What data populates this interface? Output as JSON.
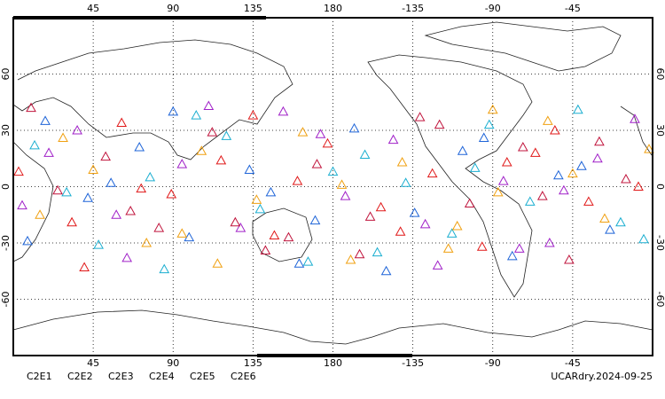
{
  "chart_data": {
    "type": "scatter",
    "footer": "UCARdry.2024-09-25",
    "xlim": [
      0,
      360
    ],
    "ylim": [
      -90,
      90
    ],
    "xticks": [
      45,
      90,
      135,
      180,
      {
        "value": 225,
        "label": "-135"
      },
      {
        "value": 270,
        "label": "-90"
      },
      {
        "value": 315,
        "label": "-45"
      }
    ],
    "yticks": [
      60,
      30,
      0,
      -30,
      -60
    ],
    "grid": true,
    "series": [
      {
        "name": "C2E1",
        "color": "#1aaed0",
        "x": [
          12,
          48,
          77,
          103,
          139,
          166,
          198,
          221,
          247,
          268,
          291,
          318,
          342,
          30,
          120,
          205,
          260,
          355,
          85,
          180
        ],
        "values": [
          22,
          -31,
          5,
          38,
          -12,
          -40,
          17,
          2,
          -25,
          33,
          -8,
          41,
          -19,
          -3,
          27,
          -35,
          10,
          -28,
          -44,
          8
        ]
      },
      {
        "name": "C2E2",
        "color": "#a020c8",
        "x": [
          5,
          36,
          64,
          95,
          128,
          152,
          187,
          214,
          239,
          276,
          302,
          329,
          350,
          58,
          173,
          232,
          310,
          110,
          20,
          285
        ],
        "values": [
          -10,
          30,
          -38,
          12,
          -22,
          40,
          -5,
          25,
          -42,
          3,
          -30,
          15,
          36,
          -15,
          28,
          -20,
          -2,
          43,
          18,
          -33
        ]
      },
      {
        "name": "C2E3",
        "color": "#1e64d8",
        "x": [
          18,
          42,
          71,
          99,
          133,
          161,
          192,
          226,
          253,
          281,
          307,
          336,
          8,
          90,
          145,
          210,
          265,
          320,
          170,
          55
        ],
        "values": [
          35,
          -6,
          21,
          -27,
          9,
          -41,
          31,
          -14,
          19,
          -37,
          6,
          -23,
          -29,
          40,
          -3,
          -45,
          26,
          11,
          -18,
          2
        ]
      },
      {
        "name": "C2E4",
        "color": "#c0143c",
        "x": [
          25,
          52,
          82,
          112,
          142,
          171,
          201,
          229,
          257,
          287,
          313,
          345,
          66,
          155,
          240,
          298,
          10,
          125,
          195,
          330
        ],
        "values": [
          -2,
          16,
          -22,
          29,
          -34,
          12,
          -16,
          37,
          -9,
          21,
          -39,
          4,
          -13,
          -27,
          33,
          -5,
          42,
          -19,
          -36,
          24
        ]
      },
      {
        "name": "C2E5",
        "color": "#e01818",
        "x": [
          3,
          33,
          61,
          89,
          117,
          147,
          177,
          207,
          236,
          264,
          294,
          324,
          352,
          72,
          135,
          218,
          278,
          40,
          160,
          305
        ],
        "values": [
          8,
          -19,
          34,
          -4,
          14,
          -26,
          23,
          -11,
          7,
          -32,
          18,
          -8,
          0,
          -1,
          38,
          -24,
          13,
          -43,
          3,
          30
        ]
      },
      {
        "name": "C2E6",
        "color": "#f0a010",
        "x": [
          15,
          45,
          75,
          106,
          137,
          163,
          190,
          219,
          250,
          273,
          301,
          333,
          358,
          28,
          115,
          185,
          245,
          315,
          95,
          270
        ],
        "values": [
          -15,
          9,
          -30,
          19,
          -7,
          29,
          -39,
          13,
          -21,
          -3,
          35,
          -17,
          20,
          26,
          -41,
          1,
          -33,
          7,
          -25,
          41
        ]
      }
    ]
  }
}
